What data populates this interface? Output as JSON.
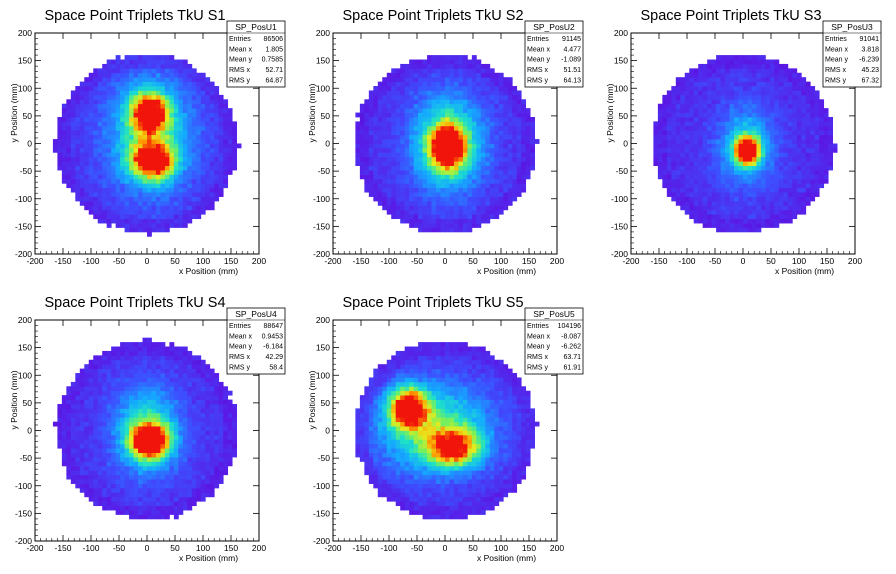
{
  "chart_data": [
    {
      "type": "heatmap",
      "title": "Space Point Triplets TkU S1",
      "xlabel": "x Position (mm)",
      "ylabel": "y Position (mm)",
      "xlim": [
        -200,
        200
      ],
      "ylim": [
        -200,
        200
      ],
      "xticks": [
        "-200",
        "-150",
        "-100",
        "-50",
        "0",
        "50",
        "100",
        "150",
        "200"
      ],
      "yticks": [
        "-200",
        "-150",
        "-100",
        "-50",
        "0",
        "50",
        "100",
        "150",
        "200"
      ],
      "stats": {
        "name": "SP_PosU1",
        "rows": [
          [
            "Entries",
            "86506"
          ],
          [
            "Mean x",
            "1.805"
          ],
          [
            "Mean y",
            "0.7585"
          ],
          [
            "RMS x",
            "52.71"
          ],
          [
            "RMS y",
            "64.87"
          ]
        ]
      },
      "disk_radius_mm": 160,
      "hot_spots": [
        {
          "x": 5,
          "y": 55,
          "amp": 1.0,
          "sx": 22,
          "sy": 24
        },
        {
          "x": 10,
          "y": -30,
          "amp": 1.0,
          "sx": 25,
          "sy": 22
        }
      ],
      "halo": {
        "x": 5,
        "y": 15,
        "amp": 0.35,
        "sx": 55,
        "sy": 75
      }
    },
    {
      "type": "heatmap",
      "title": "Space Point Triplets TkU S2",
      "xlabel": "x Position (mm)",
      "ylabel": "y Position (mm)",
      "xlim": [
        -200,
        200
      ],
      "ylim": [
        -200,
        200
      ],
      "xticks": [
        "-200",
        "-150",
        "-100",
        "-50",
        "0",
        "50",
        "100",
        "150",
        "200"
      ],
      "yticks": [
        "-200",
        "-150",
        "-100",
        "-50",
        "0",
        "50",
        "100",
        "150",
        "200"
      ],
      "stats": {
        "name": "SP_PosU2",
        "rows": [
          [
            "Entries",
            "91145"
          ],
          [
            "Mean x",
            "4.477"
          ],
          [
            "Mean y",
            "-1.089"
          ],
          [
            "RMS x",
            "51.51"
          ],
          [
            "RMS y",
            "64.13"
          ]
        ]
      },
      "disk_radius_mm": 160,
      "hot_spots": [
        {
          "x": 5,
          "y": -5,
          "amp": 1.1,
          "sx": 20,
          "sy": 25
        }
      ],
      "halo": {
        "x": 5,
        "y": 0,
        "amp": 0.45,
        "sx": 45,
        "sy": 60
      }
    },
    {
      "type": "heatmap",
      "title": "Space Point Triplets TkU S3",
      "xlabel": "x Position (mm)",
      "ylabel": "y Position (mm)",
      "xlim": [
        -200,
        200
      ],
      "ylim": [
        -200,
        200
      ],
      "xticks": [
        "-200",
        "-150",
        "-100",
        "-50",
        "0",
        "50",
        "100",
        "150",
        "200"
      ],
      "yticks": [
        "-200",
        "-150",
        "-100",
        "-50",
        "0",
        "50",
        "100",
        "150",
        "200"
      ],
      "stats": {
        "name": "SP_PosU3",
        "rows": [
          [
            "Entries",
            "91041"
          ],
          [
            "Mean x",
            "3.818"
          ],
          [
            "Mean y",
            "-6.239"
          ],
          [
            "RMS x",
            "45.23"
          ],
          [
            "RMS y",
            "67.32"
          ]
        ]
      },
      "disk_radius_mm": 160,
      "hot_spots": [
        {
          "x": 8,
          "y": -12,
          "amp": 1.15,
          "sx": 14,
          "sy": 16
        }
      ],
      "halo": {
        "x": 5,
        "y": -5,
        "amp": 0.3,
        "sx": 35,
        "sy": 50
      }
    },
    {
      "type": "heatmap",
      "title": "Space Point Triplets TkU S4",
      "xlabel": "x Position (mm)",
      "ylabel": "y Position (mm)",
      "xlim": [
        -200,
        200
      ],
      "ylim": [
        -200,
        200
      ],
      "xticks": [
        "-200",
        "-150",
        "-100",
        "-50",
        "0",
        "50",
        "100",
        "150",
        "200"
      ],
      "yticks": [
        "-200",
        "-150",
        "-100",
        "-50",
        "0",
        "50",
        "100",
        "150",
        "200"
      ],
      "stats": {
        "name": "SP_PosU4",
        "rows": [
          [
            "Entries",
            "88647"
          ],
          [
            "Mean x",
            "0.9453"
          ],
          [
            "Mean y",
            "-6.184"
          ],
          [
            "RMS x",
            "42.29"
          ],
          [
            "RMS y",
            "58.4"
          ]
        ]
      },
      "disk_radius_mm": 160,
      "hot_spots": [
        {
          "x": 5,
          "y": -18,
          "amp": 1.1,
          "sx": 22,
          "sy": 20
        }
      ],
      "halo": {
        "x": 0,
        "y": 0,
        "amp": 0.38,
        "sx": 42,
        "sy": 55
      }
    },
    {
      "type": "heatmap",
      "title": "Space Point Triplets TkU S5",
      "xlabel": "x Position (mm)",
      "ylabel": "y Position (mm)",
      "xlim": [
        -200,
        200
      ],
      "ylim": [
        -200,
        200
      ],
      "xticks": [
        "-200",
        "-150",
        "-100",
        "-50",
        "0",
        "50",
        "100",
        "150",
        "200"
      ],
      "yticks": [
        "-200",
        "-150",
        "-100",
        "-50",
        "0",
        "50",
        "100",
        "150",
        "200"
      ],
      "stats": {
        "name": "SP_PosU5",
        "rows": [
          [
            "Entries",
            "104196"
          ],
          [
            "Mean x",
            "-8.087"
          ],
          [
            "Mean y",
            "-6.262"
          ],
          [
            "RMS x",
            "63.71"
          ],
          [
            "RMS y",
            "61.91"
          ]
        ]
      },
      "disk_radius_mm": 160,
      "hot_spots": [
        {
          "x": -65,
          "y": 40,
          "amp": 1.0,
          "sx": 22,
          "sy": 24
        },
        {
          "x": 15,
          "y": -30,
          "amp": 0.8,
          "sx": 30,
          "sy": 22
        }
      ],
      "halo": {
        "x": -20,
        "y": 5,
        "amp": 0.42,
        "sx": 70,
        "sy": 55
      }
    }
  ]
}
